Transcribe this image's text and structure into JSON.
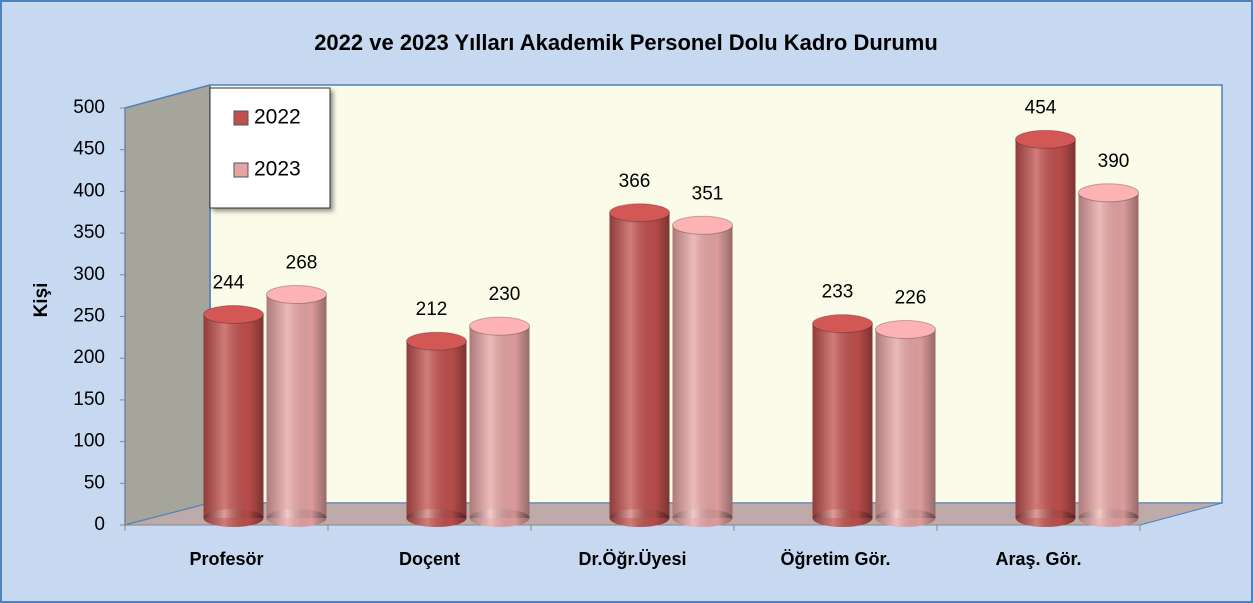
{
  "chart_data": {
    "type": "bar3d",
    "title": "2022 ve 2023 Yılları Akademik Personel Dolu Kadro Durumu",
    "y_label": "Kişi",
    "categories": [
      "Profesör",
      "Doçent",
      "Dr.Öğr.Üyesi",
      "Öğretim Gör.",
      "Araş. Gör."
    ],
    "series": [
      {
        "name": "2022",
        "color": "#c0504d",
        "values": [
          244,
          212,
          366,
          233,
          454
        ]
      },
      {
        "name": "2023",
        "color": "#e6a3a3",
        "values": [
          268,
          230,
          351,
          226,
          390
        ]
      }
    ],
    "ylim": [
      0,
      500
    ],
    "yticks": [
      0,
      50,
      100,
      150,
      200,
      250,
      300,
      350,
      400,
      450,
      500
    ],
    "legend": "top-left"
  }
}
